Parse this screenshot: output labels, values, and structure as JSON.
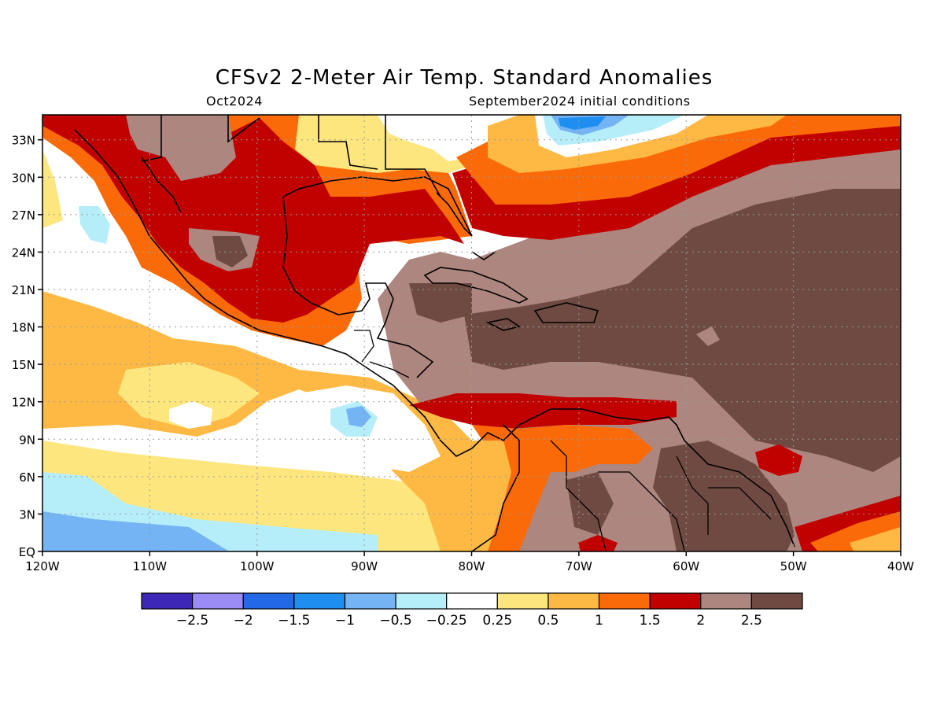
{
  "header": {
    "title": "CFSv2 2-Meter Air Temp. Standard Anomalies",
    "month": "Oct2024",
    "init": "September2024 initial conditions"
  },
  "map": {
    "lon_range": [
      -120,
      -40
    ],
    "lat_range": [
      0,
      35
    ],
    "x_ticks": [
      "120W",
      "110W",
      "100W",
      "90W",
      "80W",
      "70W",
      "60W",
      "50W",
      "40W"
    ],
    "y_ticks": [
      "33N",
      "30N",
      "27N",
      "24N",
      "21N",
      "18N",
      "15N",
      "12N",
      "9N",
      "6N",
      "3N",
      "EQ"
    ],
    "gridlines": "dotted"
  },
  "legend": {
    "colors": [
      "#3d27b5",
      "#9b8cf3",
      "#2368e6",
      "#1e8ff0",
      "#74b3f4",
      "#b5eef9",
      "#ffffff",
      "#fee67f",
      "#fdb943",
      "#fb6a08",
      "#c10000",
      "#ad867f",
      "#6f4a42"
    ],
    "labels": [
      "-2.5",
      "-2",
      "-1.5",
      "-1",
      "-0.5",
      "-0.25",
      "0.25",
      "0.5",
      "1",
      "1.5",
      "2",
      "2.5"
    ]
  }
}
